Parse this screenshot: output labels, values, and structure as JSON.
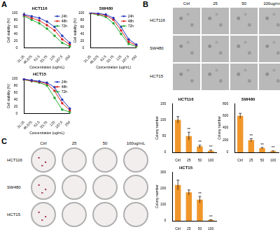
{
  "chart_data": [
    {
      "type": "line",
      "title": "HCT116",
      "x_label": "Concentration (ug/mL)",
      "y_label": "Cell viability (%)",
      "categories": [
        "31.25",
        "46.875",
        "62.5",
        "93.75",
        "125",
        "187.5",
        "250"
      ],
      "series": [
        {
          "name": "24h",
          "color": "#2233bb",
          "marker": "circle",
          "values": [
            95,
            90,
            85,
            75,
            60,
            35,
            15
          ]
        },
        {
          "name": "48h",
          "color": "#dd2222",
          "marker": "circle",
          "values": [
            93,
            85,
            78,
            65,
            50,
            25,
            10
          ]
        },
        {
          "name": "72h",
          "color": "#22aa33",
          "marker": "circle",
          "values": [
            90,
            80,
            70,
            55,
            35,
            15,
            5
          ]
        }
      ],
      "ylim": [
        0,
        100
      ],
      "yticks": [
        0,
        20,
        40,
        60,
        80,
        100
      ],
      "grid": false,
      "legend": "upper right"
    },
    {
      "type": "line",
      "title": "SW480",
      "x_label": "Concentration (ug/mL)",
      "y_label": "Cell viability (%)",
      "categories": [
        "31.25",
        "46.875",
        "62.5",
        "93.75",
        "125",
        "187.5",
        "250"
      ],
      "series": [
        {
          "name": "24h",
          "color": "#2233bb",
          "marker": "circle",
          "values": [
            100,
            98,
            95,
            85,
            60,
            25,
            10
          ]
        },
        {
          "name": "48h",
          "color": "#dd2222",
          "marker": "circle",
          "values": [
            99,
            96,
            92,
            80,
            50,
            18,
            8
          ]
        },
        {
          "name": "72h",
          "color": "#22aa33",
          "marker": "circle",
          "values": [
            98,
            94,
            88,
            70,
            40,
            12,
            5
          ]
        }
      ],
      "ylim": [
        0,
        100
      ],
      "yticks": [
        0,
        20,
        40,
        60,
        80,
        100
      ],
      "grid": false,
      "legend": "upper right"
    },
    {
      "type": "line",
      "title": "HCT15",
      "x_label": "Concentration (ug/mL)",
      "y_label": "Cell viability (%)",
      "categories": [
        "31.25",
        "46.875",
        "62.5",
        "93.75",
        "125",
        "187.5",
        "250"
      ],
      "series": [
        {
          "name": "24h",
          "color": "#2233bb",
          "marker": "circle",
          "values": [
            98,
            95,
            92,
            88,
            75,
            40,
            15
          ]
        },
        {
          "name": "48h",
          "color": "#dd2222",
          "marker": "circle",
          "values": [
            97,
            93,
            90,
            85,
            65,
            30,
            10
          ]
        },
        {
          "name": "72h",
          "color": "#22aa33",
          "marker": "circle",
          "values": [
            96,
            92,
            88,
            80,
            45,
            12,
            5
          ]
        }
      ],
      "ylim": [
        0,
        100
      ],
      "yticks": [
        0,
        20,
        40,
        60,
        80,
        100
      ],
      "grid": false,
      "legend": "upper right"
    },
    {
      "type": "bar",
      "title": "HCT116",
      "y_label": "Colony number",
      "categories": [
        "Ctrl",
        "25",
        "50",
        "100"
      ],
      "values": [
        100,
        50,
        18,
        5
      ],
      "errors": [
        10,
        12,
        4,
        2
      ],
      "color": "#f0962a",
      "ylim": [
        0,
        150
      ],
      "yticks": [
        0,
        50,
        100,
        150
      ],
      "grid": false,
      "annotations": [
        {
          "category": "25",
          "text": "**"
        },
        {
          "category": "50",
          "text": "**"
        },
        {
          "category": "100",
          "text": "**"
        }
      ]
    },
    {
      "type": "bar",
      "title": "SW480",
      "y_label": "Colony number",
      "categories": [
        "Ctrl",
        "25",
        "50",
        "100"
      ],
      "values": [
        600,
        200,
        70,
        20
      ],
      "errors": [
        40,
        25,
        10,
        5
      ],
      "color": "#f0962a",
      "ylim": [
        0,
        800
      ],
      "yticks": [
        0,
        200,
        400,
        600,
        800
      ],
      "grid": false,
      "annotations": [
        {
          "category": "25",
          "text": "**"
        },
        {
          "category": "50",
          "text": "**"
        },
        {
          "category": "100",
          "text": "**"
        }
      ]
    },
    {
      "type": "bar",
      "title": "HCT15",
      "y_label": "Colony number",
      "categories": [
        "Ctrl",
        "25",
        "50",
        "100"
      ],
      "values": [
        220,
        175,
        130,
        5
      ],
      "errors": [
        30,
        15,
        20,
        2
      ],
      "color": "#f0962a",
      "ylim": [
        0,
        300
      ],
      "yticks": [
        0,
        100,
        200,
        300
      ],
      "grid": false,
      "annotations": [
        {
          "category": "50",
          "text": "**"
        },
        {
          "category": "100",
          "text": "**"
        }
      ]
    }
  ],
  "panels": [
    "A",
    "B",
    "C"
  ],
  "image_panels": [
    {
      "label": "B",
      "columns": [
        "Ctrl",
        "25",
        "50",
        "100ug/mL"
      ],
      "rows": [
        "HCT116",
        "SW480",
        "HCT15"
      ]
    },
    {
      "label": "C",
      "columns": [
        "Ctrl",
        "25",
        "50",
        "100ug/mL"
      ],
      "rows": [
        "HCT116",
        "SW480",
        "HCT15"
      ]
    }
  ]
}
